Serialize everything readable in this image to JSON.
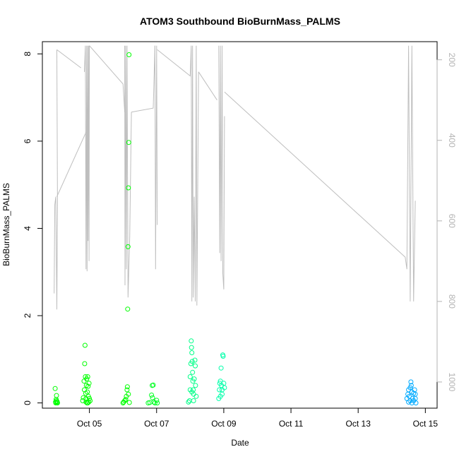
{
  "chart_data": {
    "type": "scatter",
    "title": "ATOM3 Southbound BioBurnMass_PALMS",
    "xlabel": "Date",
    "ylabel": "BioBurnMass_PALMS",
    "x_unit": "day of October (fractional)",
    "xlim": [
      3.6,
      15.35
    ],
    "ylim": [
      -0.12,
      8.28
    ],
    "y2_reversed": true,
    "y2lim": [
      1065,
      155
    ],
    "x_ticks": [
      {
        "value": 5,
        "label": "Oct 05"
      },
      {
        "value": 7,
        "label": "Oct 07"
      },
      {
        "value": 9,
        "label": "Oct 09"
      },
      {
        "value": 11,
        "label": "Oct 11"
      },
      {
        "value": 13,
        "label": "Oct 13"
      },
      {
        "value": 15,
        "label": "Oct 15"
      }
    ],
    "y_ticks": [
      {
        "value": 0,
        "label": "0"
      },
      {
        "value": 2,
        "label": "2"
      },
      {
        "value": 4,
        "label": "4"
      },
      {
        "value": 6,
        "label": "6"
      },
      {
        "value": 8,
        "label": "8"
      }
    ],
    "y2_ticks": [
      {
        "value": 200,
        "label": "200"
      },
      {
        "value": 400,
        "label": "400"
      },
      {
        "value": 600,
        "label": "600"
      },
      {
        "value": 800,
        "label": "800"
      },
      {
        "value": 1000,
        "label": "1000"
      }
    ],
    "grid": false,
    "colors": {
      "points_early": "#00ff00",
      "points_mid": "#00ffaa",
      "points_late": "#00aaff",
      "trace": "#bebebe",
      "axis": "#000000",
      "right_axis": "#b3b3b3"
    },
    "flights": [
      {
        "color": "#00ff00",
        "points": [
          [
            3.98,
            0.33
          ],
          [
            3.99,
            0.02
          ],
          [
            4.0,
            0.0
          ],
          [
            4.01,
            0.08
          ],
          [
            4.02,
            0.17
          ],
          [
            4.03,
            0.01
          ],
          [
            4.04,
            0.03
          ],
          [
            4.05,
            0.0
          ],
          [
            4.02,
            0.05
          ]
        ]
      },
      {
        "color": "#00ff00",
        "points": [
          [
            4.8,
            0.05
          ],
          [
            4.82,
            0.12
          ],
          [
            4.84,
            0.5
          ],
          [
            4.85,
            0.3
          ],
          [
            4.86,
            0.9
          ],
          [
            4.87,
            1.32
          ],
          [
            4.88,
            0.6
          ],
          [
            4.89,
            0.22
          ],
          [
            4.9,
            0.1
          ],
          [
            4.91,
            0.4
          ],
          [
            4.92,
            0.55
          ],
          [
            4.93,
            0.0
          ],
          [
            4.94,
            0.25
          ],
          [
            4.95,
            0.6
          ],
          [
            4.96,
            0.38
          ],
          [
            4.97,
            0.15
          ],
          [
            4.98,
            0.02
          ],
          [
            4.99,
            0.45
          ],
          [
            5.0,
            0.1
          ],
          [
            5.02,
            0.05
          ],
          [
            4.9,
            0.02
          ],
          [
            4.95,
            0.0
          ]
        ]
      },
      {
        "color": "#00ff00",
        "points": [
          [
            6.0,
            0.0
          ],
          [
            6.02,
            0.02
          ],
          [
            6.05,
            0.05
          ],
          [
            6.08,
            0.08
          ],
          [
            6.1,
            0.15
          ],
          [
            6.12,
            0.3
          ],
          [
            6.13,
            0.37
          ],
          [
            6.14,
            2.15
          ],
          [
            6.15,
            3.58
          ],
          [
            6.16,
            4.93
          ],
          [
            6.17,
            5.97
          ],
          [
            6.18,
            7.98
          ],
          [
            6.16,
            0.2
          ],
          [
            6.19,
            0.01
          ]
        ]
      },
      {
        "color": "#00ff22",
        "points": [
          [
            6.75,
            0.0
          ],
          [
            6.8,
            0.01
          ],
          [
            6.85,
            0.18
          ],
          [
            6.87,
            0.4
          ],
          [
            6.9,
            0.41
          ],
          [
            6.92,
            0.02
          ],
          [
            6.95,
            0.0
          ],
          [
            7.0,
            0.06
          ],
          [
            7.02,
            0.0
          ],
          [
            6.88,
            0.12
          ]
        ]
      },
      {
        "color": "#00ff88",
        "points": [
          [
            7.95,
            0.02
          ],
          [
            7.98,
            0.05
          ],
          [
            8.0,
            0.3
          ],
          [
            8.02,
            0.9
          ],
          [
            8.03,
            1.42
          ],
          [
            8.04,
            1.27
          ],
          [
            8.05,
            1.15
          ],
          [
            8.06,
            0.95
          ],
          [
            8.07,
            0.7
          ],
          [
            8.08,
            0.5
          ],
          [
            8.09,
            0.3
          ],
          [
            8.1,
            0.2
          ],
          [
            8.12,
            0.55
          ],
          [
            8.14,
            0.98
          ],
          [
            8.15,
            0.85
          ],
          [
            8.16,
            0.4
          ],
          [
            8.18,
            0.15
          ],
          [
            8.05,
            0.25
          ],
          [
            8.1,
            0.05
          ],
          [
            8.0,
            0.6
          ]
        ]
      },
      {
        "color": "#00ffaa",
        "points": [
          [
            8.85,
            0.1
          ],
          [
            8.87,
            0.3
          ],
          [
            8.88,
            0.45
          ],
          [
            8.9,
            0.5
          ],
          [
            8.92,
            0.8
          ],
          [
            8.93,
            0.4
          ],
          [
            8.95,
            0.2
          ],
          [
            8.97,
            1.1
          ],
          [
            8.98,
            1.07
          ],
          [
            9.0,
            0.45
          ],
          [
            9.02,
            0.35
          ],
          [
            8.9,
            0.15
          ],
          [
            8.95,
            0.3
          ]
        ]
      },
      {
        "color": "#00aaff",
        "points": [
          [
            14.45,
            0.1
          ],
          [
            14.48,
            0.2
          ],
          [
            14.5,
            0.3
          ],
          [
            14.52,
            0.15
          ],
          [
            14.55,
            0.35
          ],
          [
            14.57,
            0.48
          ],
          [
            14.58,
            0.4
          ],
          [
            14.6,
            0.25
          ],
          [
            14.62,
            0.1
          ],
          [
            14.65,
            0.05
          ],
          [
            14.68,
            0.3
          ],
          [
            14.7,
            0.2
          ],
          [
            14.72,
            0.0
          ],
          [
            14.55,
            0.05
          ],
          [
            14.6,
            0.0
          ],
          [
            14.5,
            0.02
          ],
          [
            14.65,
            0.22
          ],
          [
            14.7,
            0.1
          ]
        ]
      }
    ],
    "trace": {
      "color": "#bebebe",
      "segments": [
        [
          [
            3.95,
            780
          ],
          [
            3.97,
            560
          ],
          [
            4.0,
            540
          ],
          [
            4.03,
            820
          ],
          [
            4.05,
            560
          ],
          [
            4.03,
            175
          ]
        ],
        [
          [
            4.03,
            175
          ],
          [
            4.75,
            220
          ]
        ],
        [
          [
            4.03,
            540
          ],
          [
            4.9,
            380
          ]
        ],
        [
          [
            4.85,
            230
          ],
          [
            4.88,
            165
          ],
          [
            4.9,
            720
          ],
          [
            4.92,
            165
          ],
          [
            4.93,
            725
          ],
          [
            4.95,
            165
          ],
          [
            4.96,
            650
          ],
          [
            4.98,
            165
          ],
          [
            4.99,
            700
          ],
          [
            5.0,
            165
          ]
        ],
        [
          [
            5.0,
            165
          ],
          [
            6.0,
            260
          ],
          [
            6.05,
            330
          ]
        ],
        [
          [
            6.05,
            165
          ],
          [
            6.06,
            760
          ],
          [
            6.08,
            165
          ],
          [
            6.1,
            720
          ],
          [
            6.12,
            165
          ],
          [
            6.15,
            790
          ],
          [
            6.2,
            640
          ],
          [
            6.25,
            330
          ]
        ],
        [
          [
            6.25,
            330
          ],
          [
            6.9,
            320
          ],
          [
            6.95,
            165
          ]
        ],
        [
          [
            6.95,
            165
          ],
          [
            6.97,
            720
          ],
          [
            7.0,
            165
          ],
          [
            7.02,
            610
          ]
        ],
        [
          [
            7.02,
            175
          ],
          [
            8.0,
            240
          ],
          [
            8.03,
            165
          ],
          [
            8.05,
            800
          ],
          [
            8.07,
            165
          ],
          [
            8.09,
            790
          ],
          [
            8.12,
            540
          ],
          [
            8.15,
            800
          ],
          [
            8.18,
            165
          ],
          [
            8.2,
            810
          ],
          [
            8.25,
            230
          ]
        ],
        [
          [
            8.25,
            230
          ],
          [
            8.8,
            300
          ]
        ],
        [
          [
            8.85,
            165
          ],
          [
            8.88,
            680
          ],
          [
            8.9,
            165
          ],
          [
            8.92,
            700
          ],
          [
            8.95,
            165
          ],
          [
            8.97,
            730
          ],
          [
            9.0,
            770
          ],
          [
            9.02,
            340
          ]
        ],
        [
          [
            9.02,
            280
          ],
          [
            14.4,
            690
          ],
          [
            14.45,
            720
          ],
          [
            14.5,
            165
          ],
          [
            14.55,
            800
          ],
          [
            14.6,
            165
          ],
          [
            14.65,
            800
          ],
          [
            14.7,
            550
          ]
        ]
      ]
    }
  }
}
